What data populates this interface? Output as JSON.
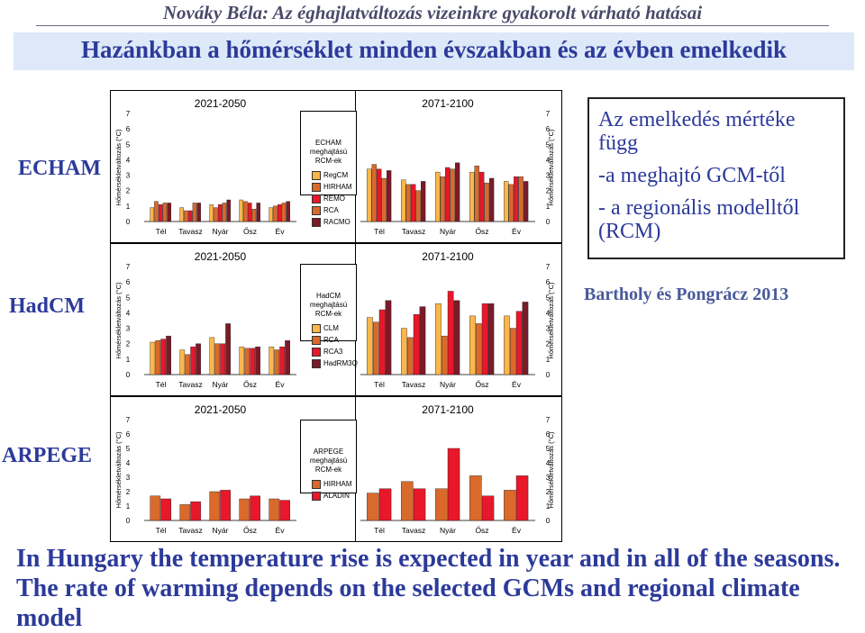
{
  "header": {
    "author_title": "Nováky Béla: Az éghajlatváltozás vizeinkre gyakorolt várható hatásai",
    "banner": "Hazánkban a hőmérséklet minden évszakban és az évben emelkedik"
  },
  "rows": {
    "echam": "ECHAM",
    "hadcm": "HadCM",
    "arpege": "ARPEGE"
  },
  "colors": {
    "CLM": "#fcb74a",
    "RCA": "#d96a2c",
    "RCA3": "#e8172a",
    "HadRM3Q": "#7b1a28",
    "RegCM": "#fcb74a",
    "HIRHAM": "#d96a2c",
    "REMO": "#e8172a",
    "RACMO": "#7b1a28",
    "ALADIN": "#e8172a"
  },
  "legends": {
    "echam": {
      "title_lines": [
        "ECHAM",
        "meghajtású",
        "RCM-ek"
      ],
      "items": [
        "RegCM",
        "HIRHAM",
        "REMO",
        "RCA",
        "RACMO"
      ]
    },
    "hadcm": {
      "title_lines": [
        "HadCM",
        "meghajtású",
        "RCM-ek"
      ],
      "items": [
        "CLM",
        "RCA",
        "RCA3",
        "HadRM3Q"
      ]
    },
    "arpege": {
      "title_lines": [
        "ARPEGE",
        "meghajtású",
        "RCM-ek"
      ],
      "items": [
        "HIRHAM",
        "ALADIN"
      ]
    }
  },
  "info": {
    "lines": [
      "Az emelkedés mértéke",
      "függ",
      "-a meghajtó GCM-től",
      "- a regionális modelltől",
      "(RCM)"
    ]
  },
  "citation": "Bartholy és Pongrácz 2013",
  "footer": "In Hungary the temperature rise is expected in year and in all of the seasons. The rate of warming depends on the selected GCMs and regional climate model",
  "chart_data": [
    {
      "id": "echam_2021",
      "type": "bar",
      "title": "2021-2050",
      "ylabel": "Hőmérsékletváltozás (°C)",
      "categories": [
        "Tél",
        "Tavasz",
        "Nyár",
        "Ősz",
        "Év"
      ],
      "yticks": [
        "0",
        "1",
        "2",
        "3",
        "4",
        "5",
        "6",
        "7"
      ],
      "ylim": [
        0,
        7
      ],
      "series": [
        {
          "name": "RegCM",
          "values": [
            0.9,
            0.9,
            1.1,
            1.4,
            0.9
          ]
        },
        {
          "name": "HIRHAM",
          "values": [
            1.3,
            0.7,
            0.9,
            1.3,
            1.0
          ]
        },
        {
          "name": "REMO",
          "values": [
            1.1,
            0.7,
            1.1,
            1.2,
            1.1
          ]
        },
        {
          "name": "RCA",
          "values": [
            1.2,
            1.2,
            1.2,
            0.8,
            1.2
          ]
        },
        {
          "name": "RACMO",
          "values": [
            1.2,
            1.2,
            1.4,
            1.2,
            1.3
          ]
        }
      ]
    },
    {
      "id": "echam_2071",
      "type": "bar",
      "title": "2071-2100",
      "ylabel": "Hőmérsékletváltozás (°C)",
      "categories": [
        "Tél",
        "Tavasz",
        "Nyár",
        "Ősz",
        "Év"
      ],
      "yticks": [
        "0",
        "1",
        "2",
        "3",
        "4",
        "5",
        "6",
        "7"
      ],
      "ylim": [
        0,
        7
      ],
      "series": [
        {
          "name": "RegCM",
          "values": [
            3.4,
            2.7,
            3.2,
            3.2,
            2.6
          ]
        },
        {
          "name": "HIRHAM",
          "values": [
            3.7,
            2.4,
            2.9,
            3.6,
            2.4
          ]
        },
        {
          "name": "REMO",
          "values": [
            3.4,
            2.4,
            3.5,
            3.2,
            2.9
          ]
        },
        {
          "name": "RCA",
          "values": [
            2.8,
            2.0,
            3.4,
            2.5,
            2.9
          ]
        },
        {
          "name": "RACMO",
          "values": [
            3.3,
            2.6,
            3.8,
            2.8,
            2.6
          ]
        }
      ]
    },
    {
      "id": "hadcm_2021",
      "type": "bar",
      "title": "2021-2050",
      "ylabel": "Hőmérsékletváltozás (°C)",
      "categories": [
        "Tél",
        "Tavasz",
        "Nyár",
        "Ősz",
        "Év"
      ],
      "yticks": [
        "0",
        "1",
        "2",
        "3",
        "4",
        "5",
        "6",
        "7"
      ],
      "ylim": [
        0,
        7
      ],
      "series": [
        {
          "name": "CLM",
          "values": [
            2.1,
            1.6,
            2.4,
            1.8,
            1.8
          ]
        },
        {
          "name": "RCA",
          "values": [
            2.2,
            1.3,
            2.0,
            1.7,
            1.6
          ]
        },
        {
          "name": "RCA3",
          "values": [
            2.3,
            1.8,
            2.0,
            1.7,
            1.8
          ]
        },
        {
          "name": "HadRM3Q",
          "values": [
            2.5,
            2.0,
            3.3,
            1.8,
            2.2
          ]
        }
      ]
    },
    {
      "id": "hadcm_2071",
      "type": "bar",
      "title": "2071-2100",
      "ylabel": "Hőmérsékletváltozás (°C)",
      "categories": [
        "Tél",
        "Tavasz",
        "Nyár",
        "Ősz",
        "Év"
      ],
      "yticks": [
        "0",
        "1",
        "2",
        "3",
        "4",
        "5",
        "6",
        "7"
      ],
      "ylim": [
        0,
        7
      ],
      "series": [
        {
          "name": "CLM",
          "values": [
            3.7,
            3.0,
            4.6,
            3.8,
            3.8
          ]
        },
        {
          "name": "RCA",
          "values": [
            3.4,
            2.4,
            2.5,
            3.3,
            3.0
          ]
        },
        {
          "name": "RCA3",
          "values": [
            4.2,
            3.9,
            5.4,
            4.6,
            4.1
          ]
        },
        {
          "name": "HadRM3Q",
          "values": [
            4.8,
            4.4,
            4.8,
            4.6,
            4.7
          ]
        }
      ]
    },
    {
      "id": "arpege_2021",
      "type": "bar",
      "title": "2021-2050",
      "ylabel": "Hőmérsékletváltozás (°C)",
      "categories": [
        "Tél",
        "Tavasz",
        "Nyár",
        "Ősz",
        "Év"
      ],
      "yticks": [
        "0",
        "1",
        "2",
        "3",
        "4",
        "5",
        "6",
        "7"
      ],
      "ylim": [
        0,
        7
      ],
      "series": [
        {
          "name": "HIRHAM",
          "values": [
            1.7,
            1.1,
            2.0,
            1.5,
            1.5
          ]
        },
        {
          "name": "ALADIN",
          "values": [
            1.5,
            1.3,
            2.1,
            1.7,
            1.4
          ]
        }
      ]
    },
    {
      "id": "arpege_2071",
      "type": "bar",
      "title": "2071-2100",
      "ylabel": "Hőmérsékletváltozás (°C)",
      "categories": [
        "Tél",
        "Tavasz",
        "Nyár",
        "Ősz",
        "Év"
      ],
      "yticks": [
        "0",
        "1",
        "2",
        "3",
        "4",
        "5",
        "6",
        "7"
      ],
      "ylim": [
        0,
        7
      ],
      "series": [
        {
          "name": "HIRHAM",
          "values": [
            1.9,
            2.7,
            2.2,
            3.1,
            2.1
          ]
        },
        {
          "name": "ALADIN",
          "values": [
            2.2,
            2.2,
            5.0,
            1.7,
            3.1
          ]
        }
      ]
    }
  ]
}
